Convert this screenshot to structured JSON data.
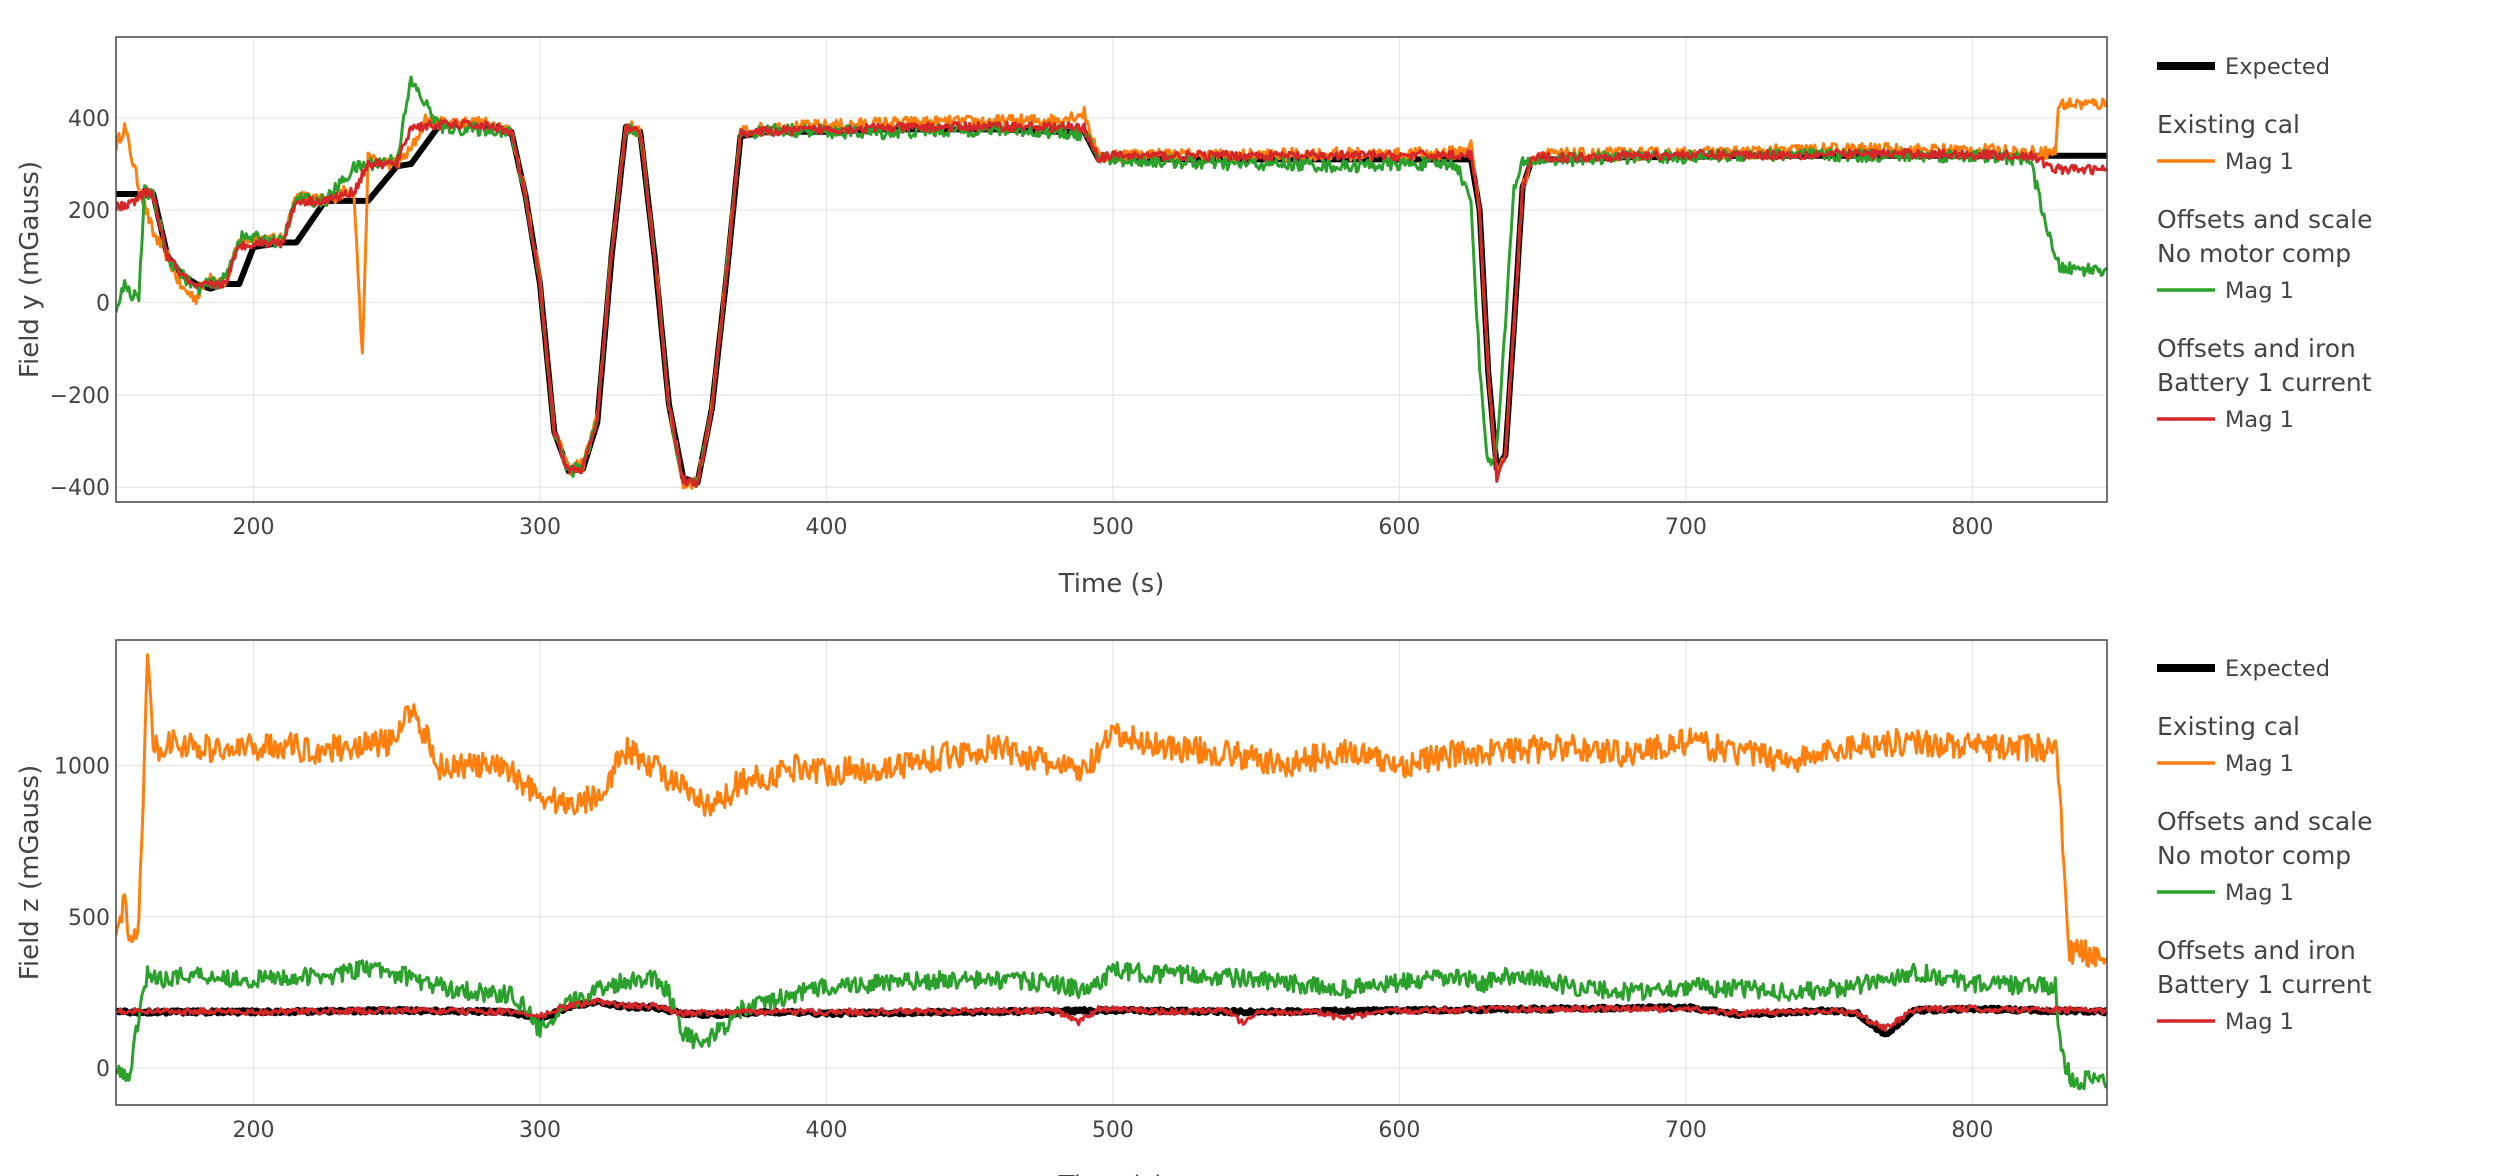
{
  "chart_data": [
    {
      "type": "line",
      "ylabel": "Field y (mGauss)",
      "xlabel": "Time (s)",
      "xlim": [
        152,
        847
      ],
      "ylim": [
        -432,
        575
      ],
      "xticks": [
        200,
        300,
        400,
        500,
        600,
        700,
        800
      ],
      "yticks": [
        -400,
        -200,
        0,
        200,
        400
      ],
      "grid": true,
      "legend_position": "right",
      "series": [
        {
          "name": "Expected",
          "color": "#000000",
          "x": [
            152,
            160,
            165,
            170,
            175,
            180,
            185,
            190,
            195,
            200,
            210,
            215,
            225,
            235,
            240,
            250,
            255,
            265,
            275,
            285,
            290,
            295,
            300,
            305,
            310,
            315,
            320,
            325,
            330,
            335,
            340,
            345,
            350,
            355,
            360,
            365,
            370,
            380,
            400,
            420,
            440,
            460,
            480,
            490,
            495,
            500,
            520,
            540,
            560,
            580,
            600,
            620,
            625,
            628,
            631,
            634,
            637,
            640,
            643,
            646,
            650,
            660,
            680,
            700,
            720,
            740,
            760,
            780,
            800,
            820,
            847
          ],
          "y": [
            235,
            235,
            235,
            100,
            60,
            40,
            30,
            40,
            40,
            120,
            130,
            130,
            220,
            220,
            220,
            295,
            300,
            385,
            385,
            380,
            370,
            230,
            40,
            -280,
            -365,
            -360,
            -260,
            100,
            380,
            370,
            100,
            -220,
            -380,
            -390,
            -230,
            50,
            360,
            370,
            370,
            375,
            375,
            375,
            370,
            370,
            310,
            315,
            310,
            310,
            310,
            310,
            310,
            310,
            310,
            200,
            -150,
            -360,
            -330,
            -50,
            250,
            305,
            310,
            310,
            315,
            315,
            318,
            318,
            318,
            318,
            318,
            318,
            318
          ]
        },
        {
          "name": "Mag 1",
          "group": "Existing cal",
          "color": "#ff7f0e",
          "amp": 14,
          "x": [
            152,
            155,
            160,
            165,
            170,
            175,
            180,
            185,
            190,
            195,
            200,
            210,
            215,
            225,
            235,
            238,
            240,
            250,
            255,
            260,
            265,
            275,
            285,
            290,
            295,
            300,
            305,
            310,
            315,
            320,
            325,
            330,
            335,
            340,
            345,
            350,
            355,
            360,
            365,
            370,
            380,
            400,
            420,
            440,
            460,
            480,
            490,
            495,
            500,
            520,
            540,
            560,
            580,
            600,
            620,
            625,
            628,
            631,
            634,
            637,
            640,
            643,
            646,
            650,
            660,
            680,
            700,
            720,
            740,
            760,
            780,
            800,
            820,
            829,
            830,
            832,
            847
          ],
          "y": [
            340,
            380,
            250,
            150,
            100,
            30,
            10,
            60,
            40,
            130,
            140,
            135,
            230,
            220,
            250,
            -120,
            310,
            300,
            330,
            395,
            390,
            390,
            385,
            370,
            235,
            50,
            -280,
            -360,
            -350,
            -250,
            110,
            385,
            370,
            110,
            -220,
            -395,
            -385,
            -230,
            60,
            370,
            378,
            382,
            388,
            390,
            392,
            395,
            410,
            315,
            320,
            320,
            318,
            320,
            322,
            320,
            325,
            340,
            195,
            -150,
            -365,
            -330,
            -50,
            250,
            310,
            320,
            320,
            322,
            322,
            325,
            330,
            332,
            330,
            330,
            325,
            325,
            425,
            430,
            430
          ]
        },
        {
          "name": "Mag 1",
          "group": "Offsets and scale No motor comp",
          "color": "#2ca02c",
          "amp": 14,
          "x": [
            152,
            155,
            157,
            160,
            162,
            165,
            170,
            175,
            180,
            185,
            190,
            195,
            200,
            210,
            215,
            225,
            235,
            240,
            250,
            255,
            260,
            265,
            275,
            285,
            290,
            295,
            300,
            305,
            310,
            315,
            320,
            325,
            330,
            335,
            340,
            345,
            350,
            355,
            360,
            365,
            370,
            380,
            400,
            420,
            440,
            460,
            480,
            490,
            495,
            500,
            520,
            540,
            560,
            580,
            600,
            620,
            625,
            628,
            631,
            634,
            637,
            640,
            643,
            646,
            650,
            660,
            680,
            700,
            720,
            740,
            760,
            780,
            800,
            820,
            829,
            831,
            835,
            847
          ],
          "y": [
            -10,
            40,
            20,
            15,
            240,
            230,
            100,
            60,
            30,
            40,
            50,
            140,
            140,
            130,
            225,
            220,
            290,
            300,
            310,
            480,
            430,
            380,
            375,
            375,
            365,
            225,
            40,
            -285,
            -365,
            -358,
            -255,
            105,
            375,
            365,
            105,
            -225,
            -395,
            -390,
            -235,
            55,
            365,
            375,
            370,
            368,
            372,
            375,
            370,
            365,
            315,
            310,
            305,
            300,
            300,
            295,
            300,
            300,
            215,
            -140,
            -355,
            -320,
            -40,
            245,
            300,
            305,
            310,
            310,
            315,
            315,
            320,
            320,
            318,
            318,
            318,
            310,
            90,
            75,
            72,
            72
          ]
        },
        {
          "name": "Mag 1",
          "group": "Offsets and iron Battery 1 current",
          "color": "#d62728",
          "amp": 10,
          "x": [
            152,
            158,
            162,
            165,
            170,
            175,
            180,
            185,
            190,
            195,
            200,
            210,
            215,
            225,
            235,
            240,
            250,
            255,
            265,
            275,
            285,
            290,
            295,
            300,
            305,
            310,
            315,
            320,
            325,
            330,
            335,
            340,
            345,
            350,
            355,
            360,
            365,
            370,
            380,
            400,
            420,
            440,
            460,
            480,
            490,
            495,
            500,
            520,
            540,
            560,
            580,
            600,
            620,
            625,
            628,
            631,
            634,
            637,
            640,
            643,
            646,
            650,
            660,
            680,
            700,
            720,
            740,
            760,
            780,
            800,
            820,
            829,
            832,
            847
          ],
          "y": [
            205,
            215,
            240,
            230,
            100,
            60,
            30,
            40,
            40,
            120,
            130,
            130,
            220,
            220,
            240,
            300,
            300,
            380,
            385,
            385,
            380,
            368,
            228,
            38,
            -282,
            -365,
            -358,
            -258,
            100,
            378,
            368,
            100,
            -222,
            -385,
            -392,
            -232,
            52,
            368,
            370,
            375,
            378,
            380,
            382,
            380,
            378,
            312,
            318,
            318,
            318,
            318,
            318,
            318,
            320,
            320,
            200,
            -150,
            -380,
            -335,
            -50,
            250,
            310,
            315,
            315,
            318,
            320,
            320,
            320,
            322,
            322,
            320,
            318,
            290,
            288,
            288
          ]
        }
      ]
    },
    {
      "type": "line",
      "ylabel": "Field z (mGauss)",
      "xlabel": "Time (s)",
      "xlim": [
        152,
        847
      ],
      "ylim": [
        -123,
        1416
      ],
      "xticks": [
        200,
        300,
        400,
        500,
        600,
        700,
        800
      ],
      "yticks": [
        0,
        500,
        1000
      ],
      "grid": true,
      "legend_position": "right",
      "series": [
        {
          "name": "Expected",
          "color": "#000000",
          "amp": 6,
          "x": [
            152,
            200,
            250,
            290,
            300,
            310,
            320,
            330,
            340,
            350,
            360,
            380,
            400,
            450,
            500,
            550,
            600,
            650,
            700,
            720,
            730,
            750,
            760,
            765,
            770,
            780,
            800,
            847
          ],
          "y": [
            185,
            185,
            190,
            185,
            160,
            200,
            220,
            200,
            200,
            180,
            175,
            185,
            180,
            185,
            190,
            185,
            190,
            195,
            200,
            175,
            180,
            190,
            180,
            140,
            110,
            190,
            195,
            185
          ]
        },
        {
          "name": "Mag 1",
          "group": "Existing cal",
          "color": "#ff7f0e",
          "amp": 45,
          "x": [
            152,
            155,
            157,
            160,
            163,
            165,
            170,
            180,
            190,
            200,
            210,
            220,
            230,
            240,
            250,
            255,
            260,
            265,
            270,
            280,
            290,
            300,
            310,
            320,
            330,
            340,
            350,
            360,
            370,
            380,
            390,
            400,
            420,
            440,
            460,
            480,
            490,
            500,
            510,
            520,
            540,
            560,
            580,
            600,
            620,
            640,
            660,
            680,
            700,
            720,
            740,
            760,
            780,
            800,
            820,
            829,
            832,
            834,
            847
          ],
          "y": [
            400,
            560,
            400,
            480,
            1350,
            1050,
            1080,
            1060,
            1050,
            1060,
            1070,
            1050,
            1060,
            1070,
            1080,
            1200,
            1100,
            1000,
            1000,
            1000,
            980,
            900,
            870,
            900,
            1050,
            1000,
            920,
            850,
            950,
            960,
            1000,
            980,
            990,
            1030,
            1060,
            1000,
            980,
            1100,
            1080,
            1060,
            1040,
            1000,
            1050,
            1000,
            1040,
            1050,
            1060,
            1040,
            1080,
            1040,
            1020,
            1070,
            1080,
            1060,
            1060,
            1060,
            700,
            380,
            380
          ]
        },
        {
          "name": "Mag 1",
          "group": "Offsets and scale No motor comp",
          "color": "#2ca02c",
          "amp": 30,
          "x": [
            152,
            155,
            157,
            160,
            163,
            165,
            170,
            180,
            190,
            200,
            210,
            220,
            230,
            240,
            250,
            255,
            260,
            270,
            280,
            290,
            295,
            300,
            310,
            320,
            330,
            340,
            345,
            350,
            355,
            360,
            370,
            380,
            400,
            420,
            440,
            460,
            480,
            490,
            500,
            520,
            540,
            560,
            580,
            600,
            620,
            630,
            640,
            660,
            680,
            700,
            720,
            740,
            760,
            780,
            800,
            820,
            829,
            831,
            835,
            847
          ],
          "y": [
            -20,
            -30,
            -20,
            180,
            320,
            290,
            300,
            310,
            300,
            290,
            300,
            300,
            310,
            330,
            310,
            300,
            280,
            260,
            250,
            240,
            200,
            120,
            210,
            260,
            290,
            300,
            250,
            120,
            80,
            100,
            190,
            220,
            270,
            280,
            290,
            290,
            280,
            250,
            320,
            310,
            300,
            280,
            260,
            280,
            300,
            280,
            310,
            270,
            250,
            270,
            260,
            250,
            270,
            320,
            280,
            270,
            270,
            40,
            -40,
            -40
          ]
        },
        {
          "name": "Mag 1",
          "group": "Offsets and iron Battery 1 current",
          "color": "#d62728",
          "amp": 10,
          "x": [
            152,
            200,
            250,
            290,
            300,
            310,
            320,
            330,
            340,
            350,
            360,
            380,
            400,
            450,
            480,
            488,
            495,
            500,
            520,
            540,
            545,
            550,
            570,
            580,
            600,
            620,
            650,
            700,
            720,
            730,
            750,
            760,
            765,
            770,
            780,
            800,
            847
          ],
          "y": [
            190,
            185,
            190,
            185,
            170,
            205,
            220,
            205,
            205,
            180,
            185,
            185,
            185,
            188,
            190,
            150,
            195,
            195,
            185,
            188,
            150,
            185,
            185,
            165,
            190,
            190,
            195,
            195,
            180,
            185,
            190,
            180,
            150,
            130,
            195,
            195,
            190
          ]
        }
      ]
    }
  ],
  "legend": {
    "items": [
      {
        "kind": "item",
        "text": "Expected",
        "color": "#000000",
        "thick": true
      },
      {
        "kind": "head",
        "text": "Existing cal"
      },
      {
        "kind": "item",
        "text": "Mag 1",
        "color": "#ff7f0e"
      },
      {
        "kind": "head",
        "text": "Offsets and scale"
      },
      {
        "kind": "head",
        "text": "No motor comp"
      },
      {
        "kind": "item",
        "text": "Mag 1",
        "color": "#2ca02c"
      },
      {
        "kind": "head",
        "text": "Offsets and iron"
      },
      {
        "kind": "head",
        "text": "Battery 1 current"
      },
      {
        "kind": "item",
        "text": "Mag 1",
        "color": "#d62728"
      }
    ]
  }
}
